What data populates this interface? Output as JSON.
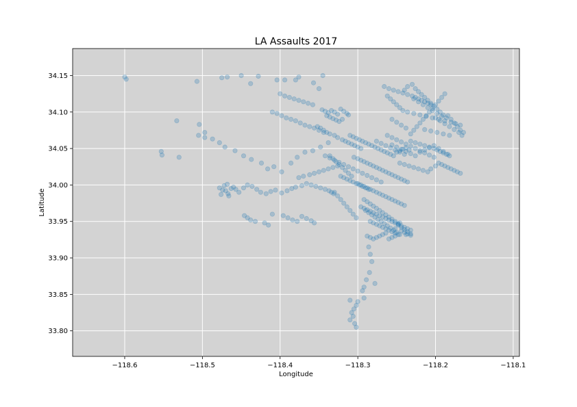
{
  "chart_data": {
    "type": "scatter",
    "title": "LA Assaults 2017",
    "xlabel": "Longitude",
    "ylabel": "Latitude",
    "xlim": [
      -118.667,
      -118.092
    ],
    "ylim": [
      33.765,
      34.187
    ],
    "xticks": [
      -118.6,
      -118.5,
      -118.4,
      -118.3,
      -118.2,
      -118.1
    ],
    "xtick_labels": [
      "−118.6",
      "−118.5",
      "−118.4",
      "−118.3",
      "−118.2",
      "−118.1"
    ],
    "yticks": [
      33.8,
      33.85,
      33.9,
      33.95,
      34.0,
      34.05,
      34.1,
      34.15
    ],
    "ytick_labels": [
      "33.80",
      "33.85",
      "33.90",
      "33.95",
      "34.00",
      "34.05",
      "34.10",
      "34.15"
    ],
    "grid": true,
    "point_alpha": 0.25,
    "colors": {
      "point": "#1f77b4",
      "axes_bg": "#d3d3d3",
      "grid": "#ffffff"
    },
    "points": {
      "x": [
        -118.6,
        -118.598,
        -118.553,
        -118.552,
        -118.533,
        -118.53,
        -118.507,
        -118.504,
        -118.497,
        -118.475,
        -118.468,
        -118.45,
        -118.438,
        -118.428,
        -118.404,
        -118.394,
        -118.38,
        -118.376,
        -118.357,
        -118.35,
        -118.345,
        -118.505,
        -118.497,
        -118.487,
        -118.478,
        -118.471,
        -118.458,
        -118.447,
        -118.437,
        -118.424,
        -118.416,
        -118.408,
        -118.398,
        -118.386,
        -118.378,
        -118.368,
        -118.358,
        -118.348,
        -118.338,
        -118.478,
        -118.474,
        -118.47,
        -118.467,
        -118.463,
        -118.472,
        -118.468,
        -118.46,
        -118.457,
        -118.476,
        -118.466,
        -118.453,
        -118.447,
        -118.442,
        -118.436,
        -118.43,
        -118.425,
        -118.418,
        -118.412,
        -118.406,
        -118.398,
        -118.391,
        -118.385,
        -118.38,
        -118.372,
        -118.366,
        -118.36,
        -118.354,
        -118.348,
        -118.342,
        -118.337,
        -118.334,
        -118.331,
        -118.446,
        -118.442,
        -118.438,
        -118.432,
        -118.42,
        -118.415,
        -118.41,
        -118.396,
        -118.39,
        -118.384,
        -118.378,
        -118.372,
        -118.366,
        -118.36,
        -118.356,
        -118.346,
        -118.342,
        -118.338,
        -118.334,
        -118.33,
        -118.326,
        -118.322,
        -118.318,
        -118.314,
        -118.312,
        -118.34,
        -118.336,
        -118.332,
        -118.328,
        -118.324,
        -118.32,
        -118.352,
        -118.348,
        -118.344,
        -118.34,
        -118.336,
        -118.33,
        -118.326,
        -118.32,
        -118.316,
        -118.312,
        -118.308,
        -118.304,
        -118.3,
        -118.296,
        -118.31,
        -118.306,
        -118.302,
        -118.298,
        -118.294,
        -118.29,
        -118.286,
        -118.282,
        -118.278,
        -118.274,
        -118.27,
        -118.266,
        -118.262,
        -118.258,
        -118.254,
        -118.25,
        -118.246,
        -118.242,
        -118.238,
        -118.234,
        -118.305,
        -118.3,
        -118.296,
        -118.292,
        -118.288,
        -118.284,
        -118.28,
        -118.276,
        -118.272,
        -118.268,
        -118.264,
        -118.26,
        -118.256,
        -118.252,
        -118.248,
        -118.244,
        -118.24,
        -118.236,
        -118.3,
        -118.296,
        -118.292,
        -118.288,
        -118.284,
        -118.28,
        -118.276,
        -118.272,
        -118.268,
        -118.264,
        -118.26,
        -118.256,
        -118.252,
        -118.248,
        -118.244,
        -118.24,
        -118.296,
        -118.292,
        -118.288,
        -118.284,
        -118.28,
        -118.276,
        -118.272,
        -118.268,
        -118.264,
        -118.26,
        -118.256,
        -118.252,
        -118.248,
        -118.244,
        -118.24,
        -118.236,
        -118.232,
        -118.284,
        -118.28,
        -118.276,
        -118.272,
        -118.268,
        -118.264,
        -118.26,
        -118.256,
        -118.252,
        -118.248,
        -118.244,
        -118.24,
        -118.236,
        -118.232,
        -118.29,
        -118.286,
        -118.282,
        -118.278,
        -118.274,
        -118.27,
        -118.266,
        -118.262,
        -118.258,
        -118.254,
        -118.25,
        -118.246,
        -118.292,
        -118.288,
        -118.284,
        -118.28,
        -118.276,
        -118.272,
        -118.268,
        -118.264,
        -118.26,
        -118.256,
        -118.252,
        -118.248,
        -118.288,
        -118.284,
        -118.28,
        -118.276,
        -118.272,
        -118.268,
        -118.264,
        -118.26,
        -118.256,
        -118.252,
        -118.286,
        -118.284,
        -118.282,
        -118.285,
        -118.289,
        -118.292,
        -118.294,
        -118.292,
        -118.3,
        -118.302,
        -118.305,
        -118.308,
        -118.306,
        -118.31,
        -118.304,
        -118.302,
        -118.31,
        -118.278,
        -118.248,
        -118.244,
        -118.24,
        -118.236,
        -118.232,
        -118.252,
        -118.246,
        -118.238,
        -118.232,
        -118.228,
        -118.224,
        -118.22,
        -118.216,
        -118.212,
        -118.208,
        -118.204,
        -118.2,
        -118.196,
        -118.192,
        -118.188,
        -118.184,
        -118.18,
        -118.176,
        -118.172,
        -118.168,
        -118.164,
        -118.24,
        -118.236,
        -118.23,
        -118.226,
        -118.222,
        -118.218,
        -118.214,
        -118.21,
        -118.206,
        -118.202,
        -118.198,
        -118.194,
        -118.19,
        -118.186,
        -118.256,
        -118.25,
        -118.244,
        -118.238,
        -118.232,
        -118.226,
        -118.22,
        -118.214,
        -118.208,
        -118.202,
        -118.196,
        -118.19,
        -118.184,
        -118.262,
        -118.256,
        -118.25,
        -118.244,
        -118.238,
        -118.232,
        -118.226,
        -118.22,
        -118.214,
        -118.208,
        -118.202,
        -118.236,
        -118.228,
        -118.22,
        -118.212,
        -118.204,
        -118.196,
        -118.188,
        -118.18,
        -118.174,
        -118.168,
        -118.214,
        -118.206,
        -118.198,
        -118.19,
        -118.182,
        -118.246,
        -118.24,
        -118.234,
        -118.228,
        -118.222,
        -118.216,
        -118.21,
        -118.206,
        -118.2,
        -118.228,
        -118.222,
        -118.216,
        -118.21,
        -118.204,
        -118.198,
        -118.192,
        -118.262,
        -118.258,
        -118.254,
        -118.25,
        -118.246,
        -118.242,
        -118.256,
        -118.25,
        -118.244,
        -118.238,
        -118.276,
        -118.27,
        -118.264,
        -118.258,
        -118.252,
        -118.246,
        -118.24,
        -118.376,
        -118.37,
        -118.362,
        -118.356,
        -118.35,
        -118.344,
        -118.338,
        -118.332,
        -118.326,
        -118.322,
        -118.318,
        -118.314,
        -118.31,
        -118.306,
        -118.302,
        -118.298,
        -118.294,
        -118.29,
        -118.286,
        -118.33,
        -118.326,
        -118.322,
        -118.318,
        -118.314,
        -118.31,
        -118.306,
        -118.302,
        -118.336,
        -118.332,
        -118.328,
        -118.324,
        -118.32,
        -118.316,
        -118.312,
        -118.308,
        -118.41,
        -118.404,
        -118.398,
        -118.392,
        -118.386,
        -118.38,
        -118.374,
        -118.368,
        -118.362,
        -118.356,
        -118.35,
        -118.344,
        -118.4,
        -118.394,
        -118.388,
        -118.382,
        -118.376,
        -118.37,
        -118.364,
        -118.358,
        -118.266,
        -118.26,
        -118.254,
        -118.248,
        -118.242,
        -118.236,
        -118.23,
        -118.226,
        -118.222,
        -118.218,
        -118.214,
        -118.21,
        -118.206,
        -118.232,
        -118.226,
        -118.22,
        -118.214,
        -118.208,
        -118.202,
        -118.198,
        -118.194,
        -118.19,
        -118.186,
        -118.182,
        -118.2,
        -118.194,
        -118.188,
        -118.182,
        -118.176,
        -118.17,
        -118.166,
        -118.196,
        -118.192,
        -118.188,
        -118.184,
        -118.18,
        -118.176,
        -118.172,
        -118.168,
        -118.342,
        -118.336,
        -118.33,
        -118.324,
        -118.318,
        -118.312,
        -118.306,
        -118.3,
        -118.294,
        -118.288,
        -118.282,
        -118.276,
        -118.27
      ],
      "y": [
        34.148,
        34.145,
        34.046,
        34.041,
        34.088,
        34.038,
        34.142,
        34.083,
        34.065,
        34.147,
        34.148,
        34.15,
        34.139,
        34.149,
        34.144,
        34.144,
        34.144,
        34.148,
        34.14,
        34.132,
        34.15,
        34.068,
        34.072,
        34.063,
        34.058,
        34.052,
        34.047,
        34.04,
        34.035,
        34.03,
        34.022,
        34.025,
        34.018,
        34.03,
        34.038,
        34.045,
        34.047,
        34.052,
        34.058,
        33.996,
        33.993,
        33.992,
        33.988,
        33.995,
        33.999,
        34.001,
        33.997,
        33.994,
        33.987,
        33.985,
        33.99,
        33.996,
        34.0,
        33.998,
        33.994,
        33.99,
        33.988,
        33.991,
        33.993,
        33.989,
        33.992,
        33.995,
        33.997,
        33.999,
        34.002,
        34.0,
        33.998,
        33.996,
        33.994,
        33.992,
        33.99,
        33.988,
        33.958,
        33.955,
        33.952,
        33.95,
        33.948,
        33.945,
        33.96,
        33.958,
        33.955,
        33.952,
        33.95,
        33.957,
        33.954,
        33.951,
        33.948,
        34.103,
        34.101,
        34.099,
        34.102,
        34.1,
        34.097,
        34.104,
        34.101,
        34.098,
        34.096,
        34.095,
        34.093,
        34.091,
        34.089,
        34.087,
        34.09,
        34.08,
        34.078,
        34.075,
        34.072,
        34.07,
        34.068,
        34.065,
        34.062,
        34.06,
        34.058,
        34.056,
        34.054,
        34.052,
        34.05,
        34.068,
        34.066,
        34.064,
        34.062,
        34.06,
        34.058,
        34.056,
        34.054,
        34.052,
        34.05,
        34.048,
        34.046,
        34.044,
        34.042,
        34.04,
        34.045,
        34.047,
        34.049,
        34.051,
        34.048,
        34.038,
        34.036,
        34.034,
        34.032,
        34.03,
        34.028,
        34.026,
        34.024,
        34.022,
        34.02,
        34.018,
        34.016,
        34.014,
        34.012,
        34.01,
        34.008,
        34.006,
        34.004,
        34.002,
        34.0,
        33.998,
        33.996,
        33.994,
        33.992,
        33.99,
        33.988,
        33.986,
        33.984,
        33.982,
        33.98,
        33.978,
        33.976,
        33.974,
        33.972,
        33.97,
        33.968,
        33.966,
        33.964,
        33.962,
        33.96,
        33.958,
        33.956,
        33.954,
        33.952,
        33.95,
        33.948,
        33.946,
        33.944,
        33.942,
        33.94,
        33.938,
        33.95,
        33.948,
        33.946,
        33.944,
        33.942,
        33.94,
        33.938,
        33.936,
        33.934,
        33.932,
        33.937,
        33.935,
        33.933,
        33.931,
        33.965,
        33.962,
        33.959,
        33.956,
        33.953,
        33.95,
        33.947,
        33.944,
        33.941,
        33.938,
        33.935,
        33.932,
        33.98,
        33.977,
        33.974,
        33.971,
        33.968,
        33.965,
        33.962,
        33.959,
        33.956,
        33.953,
        33.95,
        33.947,
        33.93,
        33.928,
        33.926,
        33.928,
        33.93,
        33.932,
        33.934,
        33.926,
        33.928,
        33.93,
        33.915,
        33.905,
        33.895,
        33.88,
        33.87,
        33.86,
        33.855,
        33.845,
        33.84,
        33.835,
        33.83,
        33.825,
        33.82,
        33.815,
        33.81,
        33.805,
        33.842,
        33.865,
        33.945,
        33.942,
        33.939,
        33.936,
        33.933,
        33.94,
        33.948,
        33.932,
        34.07,
        34.075,
        34.08,
        34.085,
        34.09,
        34.095,
        34.1,
        34.105,
        34.11,
        34.115,
        34.12,
        34.125,
        34.095,
        34.09,
        34.085,
        34.08,
        34.075,
        34.072,
        34.13,
        34.135,
        34.138,
        34.132,
        34.128,
        34.124,
        34.12,
        34.116,
        34.112,
        34.108,
        34.104,
        34.1,
        34.096,
        34.092,
        34.055,
        34.052,
        34.049,
        34.046,
        34.043,
        34.04,
        34.045,
        34.048,
        34.051,
        34.054,
        34.05,
        34.046,
        34.042,
        34.068,
        34.065,
        34.062,
        34.059,
        34.056,
        34.053,
        34.05,
        34.047,
        34.044,
        34.041,
        34.038,
        34.1,
        34.098,
        34.096,
        34.094,
        34.092,
        34.09,
        34.088,
        34.086,
        34.084,
        34.082,
        34.076,
        34.074,
        34.072,
        34.07,
        34.068,
        34.03,
        34.028,
        34.026,
        34.024,
        34.022,
        34.02,
        34.018,
        34.022,
        34.026,
        34.118,
        34.114,
        34.11,
        34.106,
        34.102,
        34.098,
        34.094,
        34.122,
        34.118,
        34.114,
        34.11,
        34.106,
        34.102,
        34.09,
        34.086,
        34.082,
        34.078,
        34.06,
        34.057,
        34.054,
        34.051,
        34.048,
        34.045,
        34.042,
        34.01,
        34.012,
        34.014,
        34.016,
        34.018,
        34.02,
        34.022,
        34.024,
        34.026,
        34.012,
        34.01,
        34.008,
        34.006,
        34.004,
        34.002,
        34.0,
        33.998,
        33.996,
        33.994,
        33.99,
        33.985,
        33.98,
        33.975,
        33.97,
        33.965,
        33.96,
        33.955,
        34.04,
        34.036,
        34.032,
        34.028,
        34.024,
        34.02,
        34.016,
        34.012,
        34.1,
        34.098,
        34.095,
        34.092,
        34.09,
        34.088,
        34.085,
        34.082,
        34.08,
        34.078,
        34.075,
        34.072,
        34.125,
        34.122,
        34.12,
        34.118,
        34.116,
        34.114,
        34.112,
        34.11,
        34.135,
        34.132,
        34.13,
        34.128,
        34.126,
        34.124,
        34.122,
        34.12,
        34.118,
        34.116,
        34.114,
        34.112,
        34.11,
        34.06,
        34.058,
        34.056,
        34.054,
        34.052,
        34.05,
        34.048,
        34.046,
        34.044,
        34.042,
        34.04,
        34.092,
        34.088,
        34.084,
        34.08,
        34.076,
        34.072,
        34.068,
        34.03,
        34.028,
        34.026,
        34.024,
        34.022,
        34.02,
        34.018,
        34.016,
        34.04,
        34.037,
        34.034,
        34.031,
        34.028,
        34.025,
        34.022,
        34.019,
        34.016,
        34.013,
        34.01,
        34.007,
        34.004
      ]
    }
  }
}
